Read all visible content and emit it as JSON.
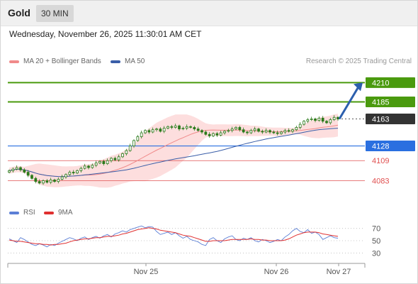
{
  "header": {
    "symbol": "Gold",
    "timeframe": "30 MIN",
    "datetime": "Wednesday, November 26, 2025 11:30:01 AM CET",
    "credit": "Research © 2025 Trading Central"
  },
  "colors": {
    "up_level": "#4a9a0e",
    "support": "#2a6fe0",
    "resistance_red": "#e05050",
    "current": "#333333",
    "bands": "#fdd8d8",
    "ma20": "#f08a8a",
    "ma50": "#3a5ea8",
    "arrow": "#2c5fad",
    "candles": "#2b7a1a",
    "rsi": "#5b7fd6",
    "rsi_ma": "#e03030"
  },
  "chart_data": [
    {
      "type": "candlestick",
      "legend": [
        {
          "name": "MA 20 + Bollinger Bands",
          "color": "#f08a8a"
        },
        {
          "name": "MA 50",
          "color": "#3a5ea8"
        }
      ],
      "x_ticks": [
        "Nov 25",
        "Nov 26",
        "Nov 27"
      ],
      "ylim": [
        4055,
        4225
      ],
      "close_series": [
        4096,
        4098,
        4100,
        4097,
        4094,
        4090,
        4086,
        4082,
        4080,
        4083,
        4081,
        4084,
        4082,
        4085,
        4088,
        4091,
        4094,
        4093,
        4096,
        4099,
        4102,
        4100,
        4103,
        4106,
        4108,
        4105,
        4109,
        4112,
        4110,
        4114,
        4118,
        4122,
        4128,
        4135,
        4140,
        4145,
        4148,
        4146,
        4149,
        4150,
        4147,
        4151,
        4153,
        4152,
        4154,
        4150,
        4151,
        4153,
        4152,
        4150,
        4148,
        4146,
        4143,
        4141,
        4144,
        4142,
        4145,
        4147,
        4148,
        4150,
        4152,
        4149,
        4146,
        4145,
        4148,
        4150,
        4147,
        4146,
        4148,
        4146,
        4145,
        4144,
        4146,
        4148,
        4147,
        4149,
        4152,
        4156,
        4160,
        4162,
        4163,
        4161,
        4164,
        4160,
        4158,
        4162,
        4165,
        4163
      ],
      "levels": [
        {
          "value": 4210,
          "label": "4210",
          "kind": "target"
        },
        {
          "value": 4185,
          "label": "4185",
          "kind": "target"
        },
        {
          "value": 4163,
          "label": "4163",
          "kind": "current"
        },
        {
          "value": 4128,
          "label": "4128",
          "kind": "support"
        },
        {
          "value": 4109,
          "label": "4109",
          "kind": "red"
        },
        {
          "value": 4083,
          "label": "4083",
          "kind": "red"
        }
      ],
      "arrow": {
        "from": 4163,
        "to": 4210
      }
    },
    {
      "type": "line",
      "series": [
        {
          "name": "RSI",
          "color": "#5b7fd6"
        },
        {
          "name": "9MA",
          "color": "#e03030"
        }
      ],
      "y_ticks": [
        {
          "value": 70,
          "label": "70"
        },
        {
          "value": 50,
          "label": "50"
        },
        {
          "value": 30,
          "label": "30"
        }
      ],
      "ylim": [
        20,
        80
      ],
      "rsi": [
        53,
        50,
        47,
        55,
        52,
        48,
        44,
        42,
        45,
        43,
        40,
        44,
        42,
        46,
        49,
        52,
        55,
        53,
        50,
        54,
        56,
        52,
        55,
        57,
        54,
        58,
        60,
        56,
        61,
        63,
        66,
        64,
        68,
        70,
        72,
        74,
        71,
        73,
        72,
        65,
        60,
        62,
        64,
        60,
        63,
        58,
        54,
        57,
        52,
        50,
        48,
        44,
        42,
        52,
        55,
        50,
        47,
        53,
        56,
        58,
        52,
        50,
        54,
        52,
        55,
        50,
        48,
        52,
        50,
        47,
        49,
        52,
        50,
        56,
        60,
        66,
        70,
        65,
        63,
        68,
        62,
        64,
        60,
        52,
        55,
        58,
        55,
        54
      ],
      "rsi_ma": [
        51,
        50,
        49,
        49,
        48,
        47,
        46,
        45,
        45,
        44,
        44,
        43,
        44,
        44,
        45,
        46,
        48,
        50,
        51,
        52,
        53,
        53,
        54,
        55,
        55,
        56,
        57,
        57,
        58,
        59,
        61,
        62,
        64,
        66,
        68,
        69,
        70,
        71,
        70,
        69,
        67,
        66,
        65,
        64,
        63,
        61,
        59,
        58,
        57,
        55,
        53,
        51,
        49,
        49,
        50,
        50,
        50,
        50,
        51,
        52,
        52,
        52,
        52,
        52,
        53,
        52,
        52,
        51,
        51,
        50,
        50,
        50,
        50,
        51,
        53,
        56,
        59,
        61,
        63,
        64,
        64,
        64,
        63,
        61,
        60,
        59,
        58,
        57
      ]
    }
  ]
}
